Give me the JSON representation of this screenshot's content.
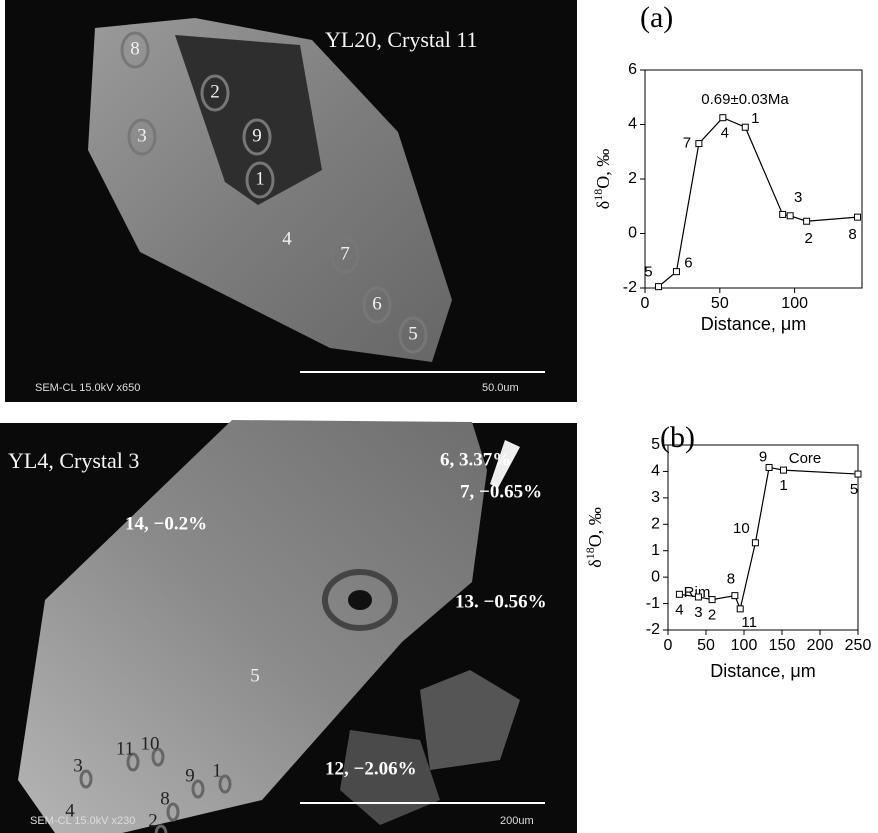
{
  "images": [
    {
      "title": "YL20, Crystal 11",
      "footer": "SEM-CL 15.0kV x650",
      "scale": "50.0um",
      "spots": [
        "8",
        "2",
        "3",
        "9",
        "1",
        "4",
        "7",
        "6",
        "5"
      ]
    },
    {
      "title": "YL4, Crystal 3",
      "footer": "SEM-CL 15.0kV x230",
      "scale": "200um",
      "spots": [
        "3",
        "11",
        "10",
        "9",
        "1",
        "8",
        "2",
        "4",
        "5"
      ],
      "notes": [
        "6, 3.37%",
        "7, −0.65%",
        "14, −0.2%",
        "13. −0.56%",
        "12, −2.06%"
      ]
    }
  ],
  "chart_data": [
    {
      "type": "line",
      "panel": "(a)",
      "x_label": "Distance, μm",
      "y_label": "δ18O, ‰",
      "annotations": [
        "0.69±0.03Ma"
      ],
      "color": "#000000",
      "x": [
        9,
        21,
        36,
        52,
        67,
        92,
        97,
        108,
        142
      ],
      "values": [
        -1.95,
        -1.4,
        3.3,
        4.25,
        3.9,
        0.7,
        0.65,
        0.45,
        0.6
      ],
      "point_labels": [
        "5",
        "6",
        "7",
        "4",
        "1",
        null,
        "3",
        "2",
        "8"
      ],
      "xlim": [
        0,
        145
      ],
      "ylim": [
        -2,
        6
      ],
      "xticks": [
        0,
        50,
        100
      ],
      "yticks": [
        -2,
        0,
        2,
        4,
        6
      ]
    },
    {
      "type": "line",
      "panel": "(b)",
      "x_label": "Distance, μm",
      "y_label": "δ18O, ‰",
      "annotations": [
        "Rim",
        "Core"
      ],
      "color": "#000000",
      "x": [
        15,
        40,
        58,
        88,
        95,
        115,
        133,
        152,
        250
      ],
      "values": [
        -0.65,
        -0.75,
        -0.85,
        -0.7,
        -1.2,
        1.3,
        4.15,
        4.05,
        3.9
      ],
      "point_labels": [
        "4",
        "3",
        "2",
        "8",
        "11",
        "10",
        "9",
        "1",
        "5"
      ],
      "xlim": [
        0,
        250
      ],
      "ylim": [
        -2,
        5
      ],
      "xticks": [
        0,
        50,
        100,
        150,
        200,
        250
      ],
      "yticks": [
        -2,
        -1,
        0,
        1,
        2,
        3,
        4,
        5
      ]
    }
  ]
}
